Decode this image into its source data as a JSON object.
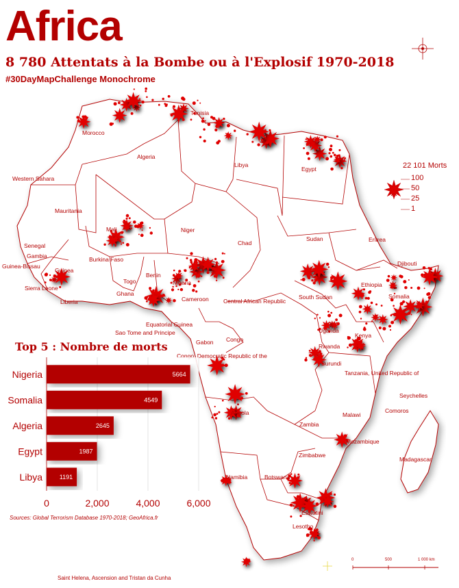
{
  "header": {
    "title": "Africa",
    "subtitle": "8 780 Attentats à la Bombe ou à l'Explosif 1970-2018",
    "hashtag": "#30DayMapChallenge Monochrome"
  },
  "legend": {
    "title": "22 101 Morts",
    "values": [
      "100",
      "50",
      "25",
      "1"
    ]
  },
  "country_labels": [
    {
      "name": "Morocco"
    },
    {
      "name": "Tunisia"
    },
    {
      "name": "Algeria"
    },
    {
      "name": "Libya"
    },
    {
      "name": "Egypt"
    },
    {
      "name": "Western Sahara"
    },
    {
      "name": "Mauritania"
    },
    {
      "name": "Mali"
    },
    {
      "name": "Niger"
    },
    {
      "name": "Chad"
    },
    {
      "name": "Sudan"
    },
    {
      "name": "Eritrea"
    },
    {
      "name": "Djibouti"
    },
    {
      "name": "Ethiopia"
    },
    {
      "name": "Somalia"
    },
    {
      "name": "Senegal"
    },
    {
      "name": "Gambia"
    },
    {
      "name": "Guinea-Bissau"
    },
    {
      "name": "Guinea"
    },
    {
      "name": "Sierra Leone"
    },
    {
      "name": "Liberia"
    },
    {
      "name": "Burkina Faso"
    },
    {
      "name": "Ghana"
    },
    {
      "name": "Togo"
    },
    {
      "name": "Benin"
    },
    {
      "name": "Nigeria"
    },
    {
      "name": "Cameroon"
    },
    {
      "name": "Central African Republic"
    },
    {
      "name": "South Sudan"
    },
    {
      "name": "Uganda"
    },
    {
      "name": "Kenya"
    },
    {
      "name": "Rwanda"
    },
    {
      "name": "Burundi"
    },
    {
      "name": "Equatorial Guinea"
    },
    {
      "name": "Sao Tome and Principe"
    },
    {
      "name": "Gabon"
    },
    {
      "name": "Congo"
    },
    {
      "name": "Congo, Democratic Republic of the"
    },
    {
      "name": "Tanzania, United Republic of"
    },
    {
      "name": "Seychelles"
    },
    {
      "name": "Comoros"
    },
    {
      "name": "Malawi"
    },
    {
      "name": "Angola"
    },
    {
      "name": "Zambia"
    },
    {
      "name": "Mozambique"
    },
    {
      "name": "Zimbabwe"
    },
    {
      "name": "Madagascar"
    },
    {
      "name": "Namibia"
    },
    {
      "name": "Botswana"
    },
    {
      "name": "Lesotho"
    },
    {
      "name": "Eswatini"
    }
  ],
  "chart_data": {
    "type": "bar",
    "orientation": "horizontal",
    "title": "Top 5 : Nombre de morts",
    "categories": [
      "Nigeria",
      "Somalia",
      "Algeria",
      "Egypt",
      "Libya"
    ],
    "values": [
      5664,
      4549,
      2645,
      1987,
      1191
    ],
    "value_labels": [
      "5664",
      "4549",
      "2645",
      "1987",
      "1191"
    ],
    "xlim": [
      0,
      6000
    ],
    "xticks": [
      0,
      2000,
      4000,
      6000
    ],
    "xtick_labels": [
      "0",
      "2,000",
      "4,000",
      "6,000"
    ],
    "grid": true,
    "bar_color": "#b30000"
  },
  "scale_bar": {
    "labels": [
      "0",
      "500",
      "1 000 km"
    ]
  },
  "sources": "Sources: Global Terrorism Database 1970-2018; GeoAfrica.fr",
  "footnote": "Saint Helena, Ascension and Tristan da Cunha",
  "colors": {
    "accent": "#b30000",
    "marker": "#e00000",
    "border": "#b30000"
  }
}
